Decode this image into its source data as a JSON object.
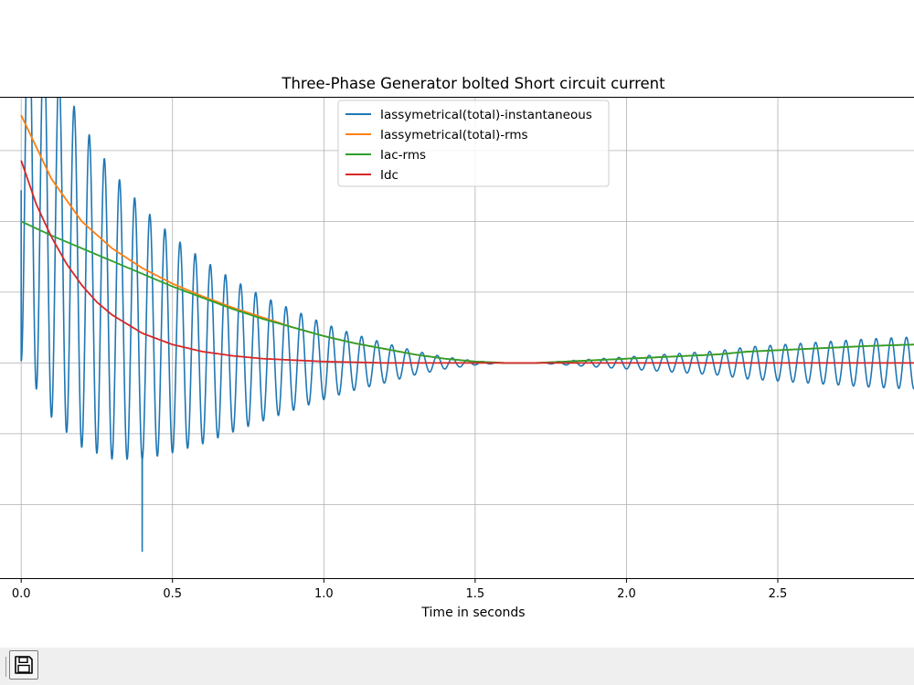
{
  "window": {
    "toolbar": {
      "save_icon": "floppy-disk-icon"
    }
  },
  "chart_data": {
    "type": "line",
    "title": "Three-Phase Generator bolted Short circuit current",
    "xlabel": "Time in seconds",
    "ylabel": "",
    "xlim": [
      -0.07,
      2.95
    ],
    "ylim": [
      -1.52,
      1.88
    ],
    "xticks": [
      0.0,
      0.5,
      1.0,
      1.5,
      2.0,
      2.5
    ],
    "xtick_labels": [
      "0.0",
      "0.5",
      "1.0",
      "1.5",
      "2.0",
      "2.5"
    ],
    "yticks": [
      -1.0,
      -0.5,
      0.0,
      0.5,
      1.0,
      1.5
    ],
    "ytick_labels": [],
    "grid": true,
    "legend_position": "top-center",
    "series": [
      {
        "name": "Iassymetrical(total)-instantaneous",
        "color": "#1f77b4",
        "frequency_hz": 20,
        "start_value": 1.22,
        "min_value": -1.33,
        "x_end": 2.95,
        "envelope_x": [
          0.0,
          0.1,
          0.2,
          0.3,
          0.4,
          0.5,
          0.6,
          0.7,
          0.8,
          0.9,
          1.0,
          1.1,
          1.2,
          1.3,
          1.4,
          1.5,
          1.6,
          1.7,
          1.8,
          1.9,
          2.0,
          2.1,
          2.2,
          2.3,
          2.4,
          2.5,
          2.6,
          2.7,
          2.8,
          2.95
        ],
        "envelope_y": [
          1.0,
          0.9,
          0.81,
          0.72,
          0.63,
          0.54,
          0.46,
          0.38,
          0.31,
          0.25,
          0.19,
          0.14,
          0.1,
          0.06,
          0.03,
          0.01,
          0.0,
          0.0,
          0.01,
          0.02,
          0.03,
          0.04,
          0.05,
          0.06,
          0.08,
          0.09,
          0.1,
          0.11,
          0.12,
          0.13
        ],
        "dc_x": [
          0.0,
          0.1,
          0.2,
          0.3,
          0.4,
          0.5,
          0.6,
          0.7,
          0.8,
          0.9,
          1.0,
          1.2,
          1.5,
          2.0,
          2.95
        ],
        "dc_y": [
          1.43,
          0.89,
          0.55,
          0.34,
          0.21,
          0.13,
          0.08,
          0.05,
          0.03,
          0.02,
          0.01,
          0.0,
          0.0,
          0.0,
          0.0
        ]
      },
      {
        "name": "Iassymetrical(total)-rms",
        "color": "#ff7f0e",
        "x": [
          0.0,
          0.1,
          0.2,
          0.3,
          0.4,
          0.5,
          0.6,
          0.7,
          0.8,
          0.9,
          1.0,
          1.1,
          1.2,
          1.3,
          1.4,
          1.5,
          1.6,
          1.7,
          1.8,
          1.9,
          2.0,
          2.1,
          2.2,
          2.3,
          2.4,
          2.5,
          2.6,
          2.7,
          2.8,
          2.95
        ],
        "y": [
          1.75,
          1.3,
          1.0,
          0.81,
          0.67,
          0.56,
          0.47,
          0.39,
          0.32,
          0.25,
          0.19,
          0.14,
          0.1,
          0.06,
          0.03,
          0.01,
          0.0,
          0.0,
          0.01,
          0.02,
          0.03,
          0.04,
          0.05,
          0.06,
          0.08,
          0.09,
          0.1,
          0.11,
          0.12,
          0.13
        ]
      },
      {
        "name": "Iac-rms",
        "color": "#2ca02c",
        "x": [
          0.0,
          0.1,
          0.2,
          0.3,
          0.4,
          0.5,
          0.6,
          0.7,
          0.8,
          0.9,
          1.0,
          1.1,
          1.2,
          1.3,
          1.4,
          1.5,
          1.6,
          1.7,
          1.8,
          1.9,
          2.0,
          2.1,
          2.2,
          2.3,
          2.4,
          2.5,
          2.6,
          2.7,
          2.8,
          2.95
        ],
        "y": [
          1.0,
          0.9,
          0.81,
          0.72,
          0.63,
          0.54,
          0.46,
          0.38,
          0.31,
          0.25,
          0.19,
          0.14,
          0.1,
          0.06,
          0.03,
          0.01,
          0.0,
          0.0,
          0.01,
          0.02,
          0.03,
          0.04,
          0.05,
          0.06,
          0.08,
          0.09,
          0.1,
          0.11,
          0.12,
          0.13
        ]
      },
      {
        "name": "Idc",
        "color": "#d62728",
        "x": [
          0.0,
          0.05,
          0.1,
          0.15,
          0.2,
          0.25,
          0.3,
          0.4,
          0.5,
          0.6,
          0.7,
          0.8,
          0.9,
          1.0,
          1.2,
          1.5,
          2.0,
          2.5,
          2.95
        ],
        "y": [
          1.43,
          1.12,
          0.89,
          0.7,
          0.55,
          0.43,
          0.34,
          0.21,
          0.13,
          0.08,
          0.05,
          0.03,
          0.02,
          0.01,
          0.0,
          0.0,
          0.0,
          0.0,
          0.0
        ]
      }
    ]
  }
}
